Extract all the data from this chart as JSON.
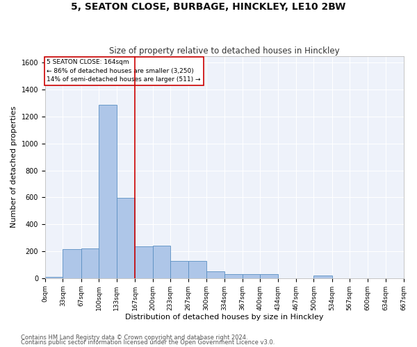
{
  "title": "5, SEATON CLOSE, BURBAGE, HINCKLEY, LE10 2BW",
  "subtitle": "Size of property relative to detached houses in Hinckley",
  "xlabel": "Distribution of detached houses by size in Hinckley",
  "ylabel": "Number of detached properties",
  "bin_labels": [
    "0sqm",
    "33sqm",
    "67sqm",
    "100sqm",
    "133sqm",
    "167sqm",
    "200sqm",
    "233sqm",
    "267sqm",
    "300sqm",
    "334sqm",
    "367sqm",
    "400sqm",
    "434sqm",
    "467sqm",
    "500sqm",
    "534sqm",
    "567sqm",
    "600sqm",
    "634sqm",
    "667sqm"
  ],
  "bin_edges": [
    0,
    33,
    67,
    100,
    133,
    167,
    200,
    233,
    267,
    300,
    334,
    367,
    400,
    434,
    467,
    500,
    534,
    567,
    600,
    634,
    667
  ],
  "bar_heights": [
    10,
    215,
    220,
    1290,
    595,
    235,
    240,
    130,
    130,
    50,
    30,
    30,
    30,
    0,
    0,
    20,
    0,
    0,
    0,
    0
  ],
  "bar_color": "#aec6e8",
  "bar_edgecolor": "#5a8fc2",
  "vline_x": 167,
  "vline_color": "#cc0000",
  "ylim": [
    0,
    1650
  ],
  "yticks": [
    0,
    200,
    400,
    600,
    800,
    1000,
    1200,
    1400,
    1600
  ],
  "annotation_box_text": "5 SEATON CLOSE: 164sqm\n← 86% of detached houses are smaller (3,250)\n14% of semi-detached houses are larger (511) →",
  "footer_line1": "Contains HM Land Registry data © Crown copyright and database right 2024.",
  "footer_line2": "Contains public sector information licensed under the Open Government Licence v3.0.",
  "bg_color": "#eef2fa",
  "grid_color": "#ffffff",
  "title_fontsize": 10,
  "subtitle_fontsize": 8.5,
  "axis_label_fontsize": 8,
  "tick_fontsize": 7,
  "footer_fontsize": 6
}
